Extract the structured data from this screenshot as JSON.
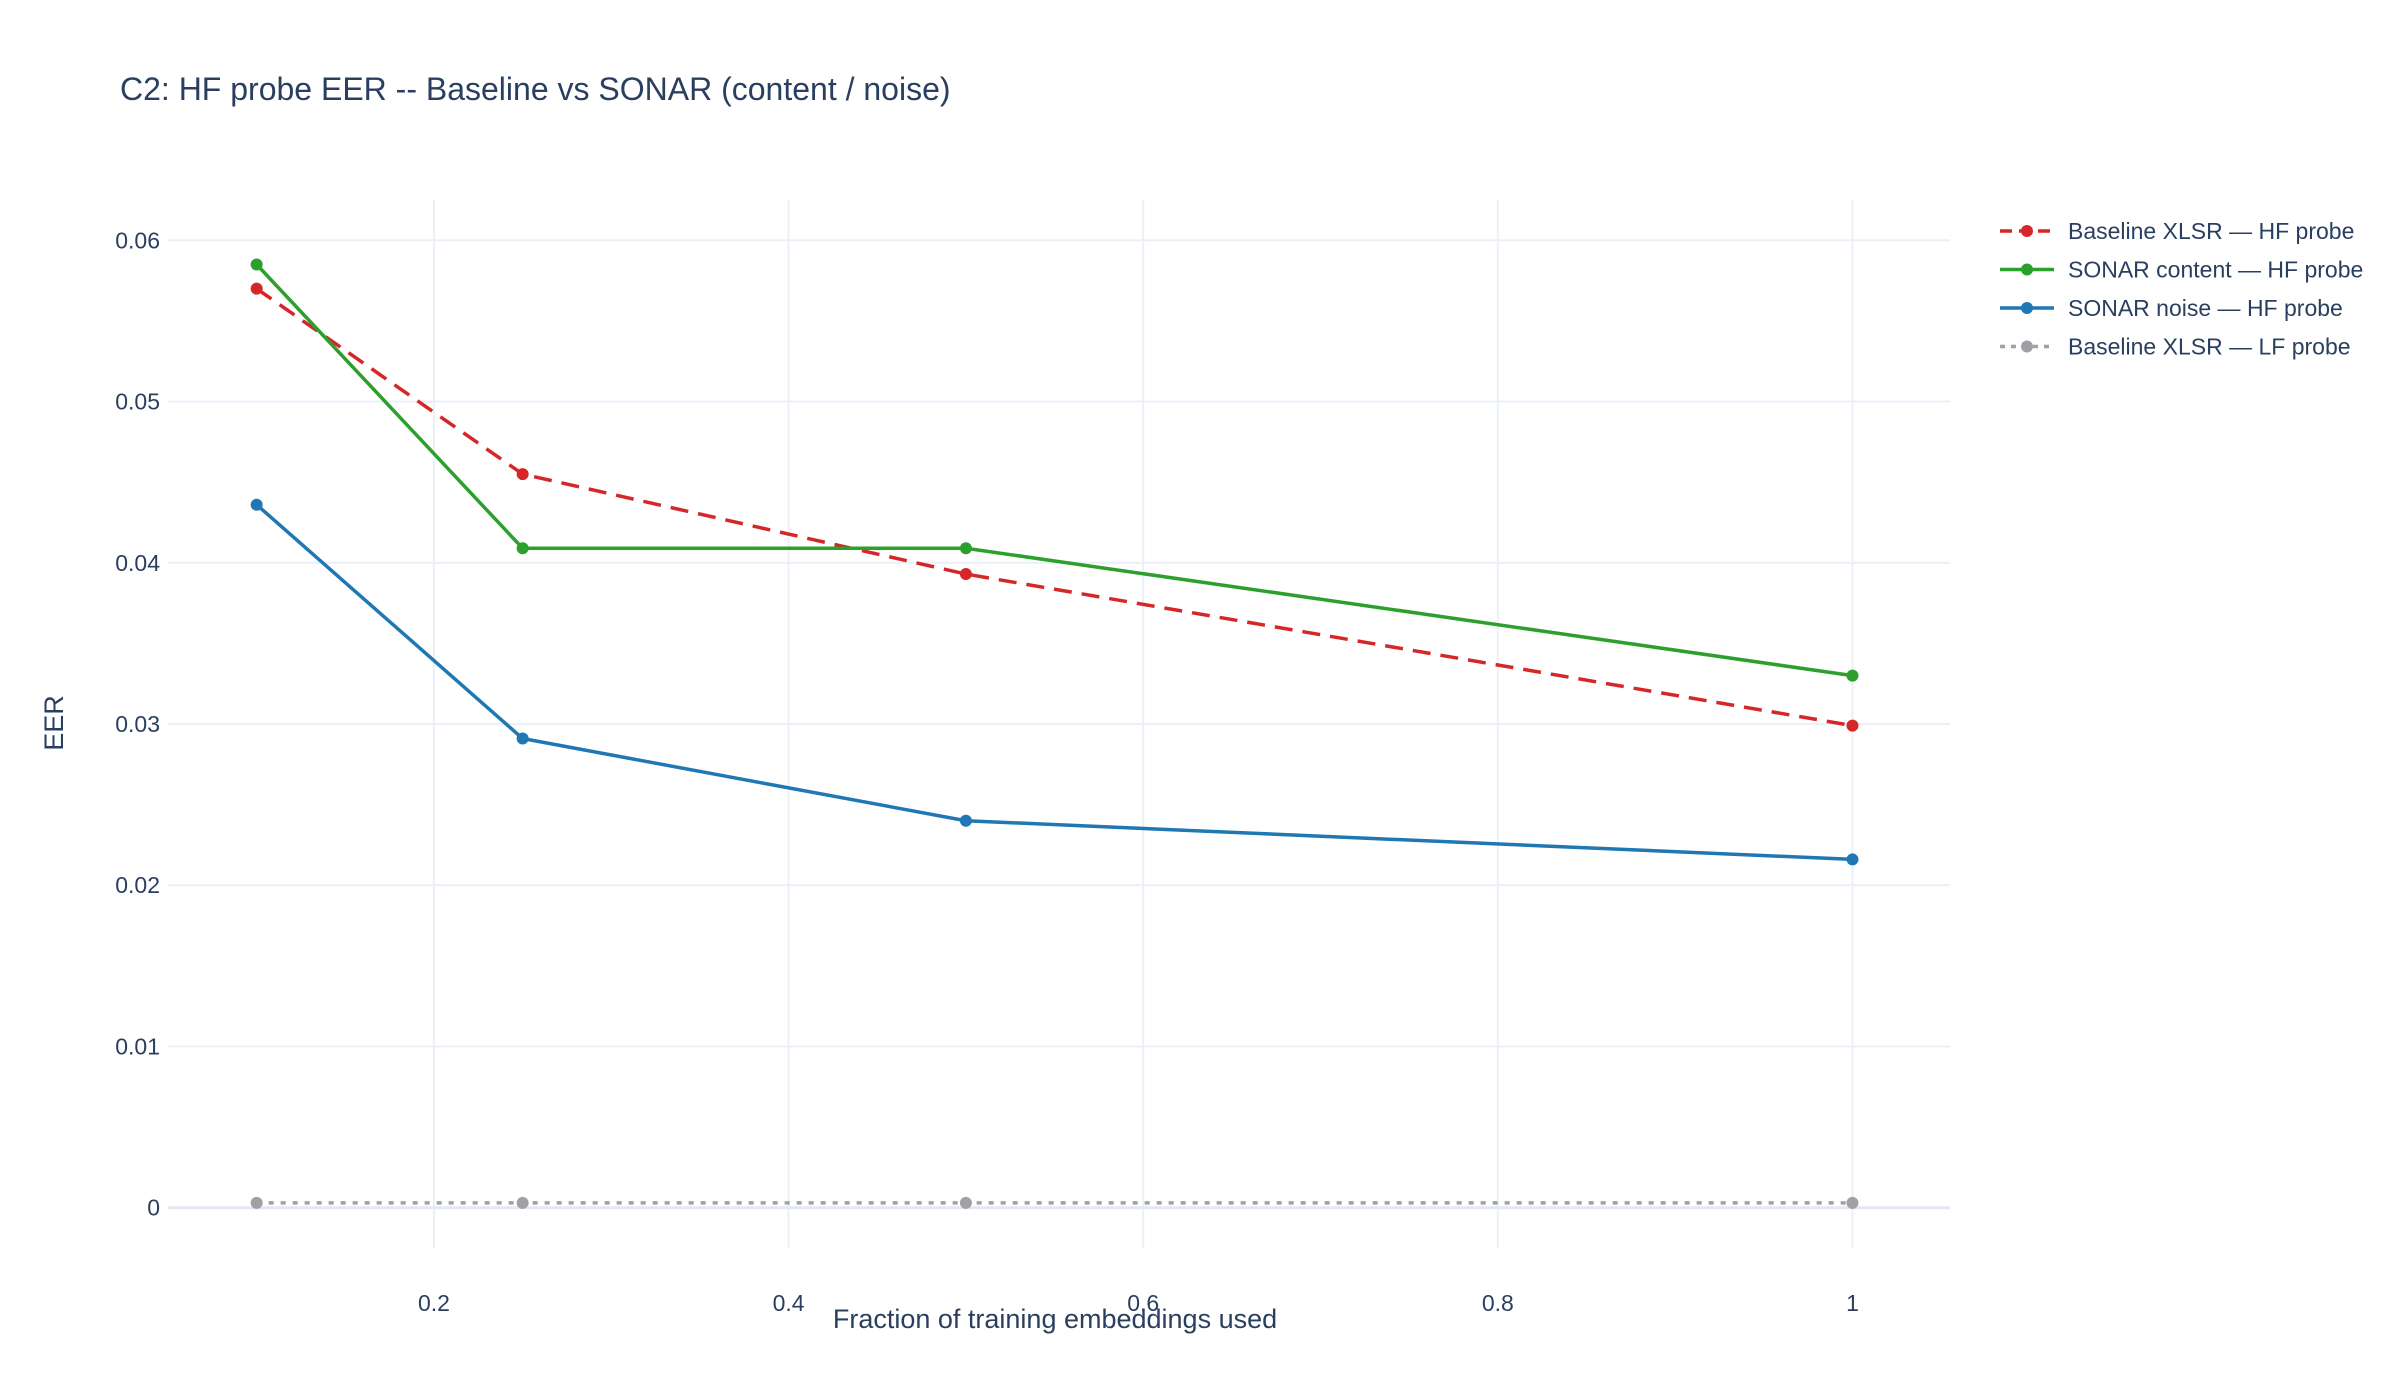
{
  "chart_data": {
    "type": "line",
    "title": "C2: HF probe EER -- Baseline vs SONAR (content / noise)",
    "xlabel": "Fraction of training embeddings used",
    "ylabel": "EER",
    "xlim": [
      0.05,
      1.055
    ],
    "ylim": [
      -0.0025,
      0.0625
    ],
    "xticks": [
      0.2,
      0.4,
      0.6,
      0.8,
      1
    ],
    "xtick_labels": [
      "0.2",
      "0.4",
      "0.6",
      "0.8",
      "1"
    ],
    "yticks": [
      0,
      0.01,
      0.02,
      0.03,
      0.04,
      0.05,
      0.06
    ],
    "ytick_labels": [
      "0",
      "0.01",
      "0.02",
      "0.03",
      "0.04",
      "0.05",
      "0.06"
    ],
    "grid": true,
    "legend_position": "top-right-outside",
    "x": [
      0.1,
      0.25,
      0.5,
      1.0
    ],
    "series": [
      {
        "name": "Baseline XLSR — HF probe",
        "values": [
          0.057,
          0.0455,
          0.0393,
          0.0299
        ],
        "color": "#d62728",
        "dash": "dashed"
      },
      {
        "name": "SONAR content — HF probe",
        "values": [
          0.0585,
          0.0409,
          0.0409,
          0.033
        ],
        "color": "#2ca02c",
        "dash": "solid"
      },
      {
        "name": "SONAR noise — HF probe",
        "values": [
          0.0436,
          0.0291,
          0.024,
          0.0216
        ],
        "color": "#1f77b4",
        "dash": "solid"
      },
      {
        "name": "Baseline XLSR — LF probe",
        "values": [
          0.0003,
          0.0003,
          0.0003,
          0.0003
        ],
        "color": "#a0a0a6",
        "dash": "dotted"
      }
    ]
  }
}
